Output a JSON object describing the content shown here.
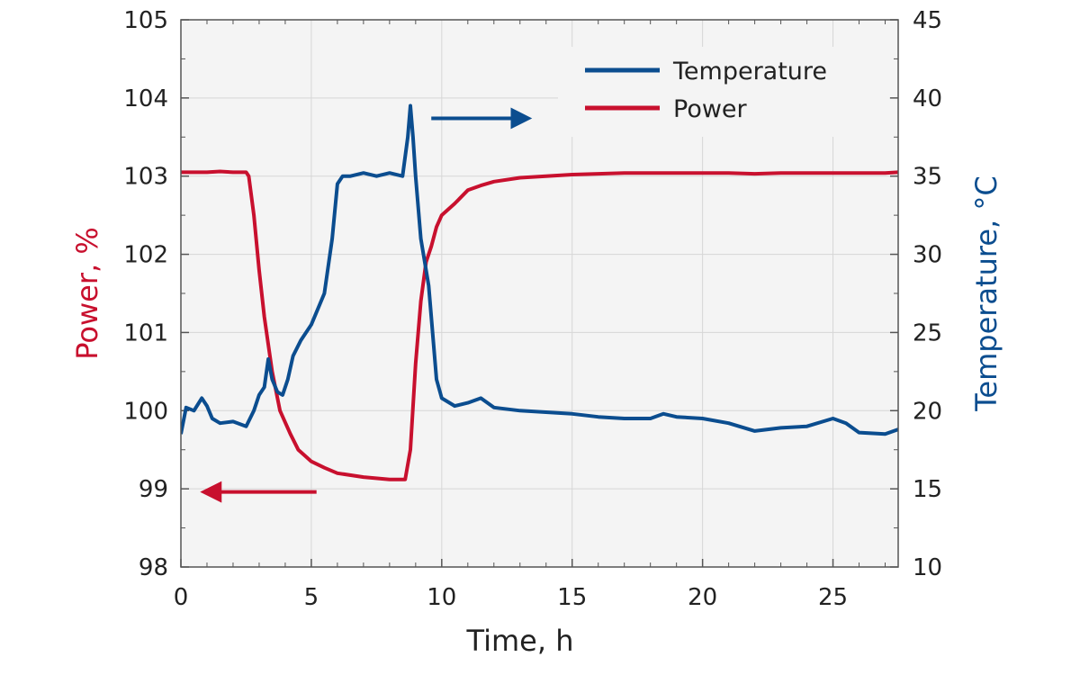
{
  "chart_data": {
    "type": "line",
    "xlabel": "Time, h",
    "ylabel_left": "Power, %",
    "ylabel_right": "Temperature, °C",
    "xlim": [
      0,
      27.5
    ],
    "ylim_left": [
      98,
      105
    ],
    "ylim_right": [
      10,
      45
    ],
    "xticks": [
      "0",
      "5",
      "10",
      "15",
      "20",
      "25"
    ],
    "yticks_left": [
      "98",
      "99",
      "100",
      "101",
      "102",
      "103",
      "104",
      "105"
    ],
    "yticks_right": [
      "10",
      "15",
      "20",
      "25",
      "30",
      "35",
      "40",
      "45"
    ],
    "grid": true,
    "legend_position": "top-right",
    "colors": {
      "power": "#c8102e",
      "temperature": "#0b4d8f",
      "plot_bg": "#f4f4f4",
      "grid": "#d6d6d6"
    },
    "series": [
      {
        "name": "Temperature",
        "axis": "right",
        "x": [
          0,
          0.2,
          0.5,
          0.8,
          1.0,
          1.2,
          1.5,
          2.0,
          2.5,
          2.8,
          3.0,
          3.2,
          3.35,
          3.5,
          3.7,
          3.9,
          4.1,
          4.3,
          4.6,
          5.0,
          5.5,
          5.8,
          6.0,
          6.2,
          6.5,
          7.0,
          7.5,
          8.0,
          8.5,
          8.7,
          8.8,
          8.9,
          9.0,
          9.2,
          9.5,
          9.8,
          10.0,
          10.5,
          11.0,
          11.5,
          12,
          13,
          14,
          15,
          16,
          17,
          18,
          18.5,
          19,
          20,
          21,
          22,
          23,
          24,
          25,
          25.5,
          26,
          27,
          27.5
        ],
        "y": [
          18.5,
          20.2,
          20.0,
          20.8,
          20.3,
          19.5,
          19.2,
          19.3,
          19.0,
          20.0,
          21.0,
          21.5,
          23.3,
          22.0,
          21.2,
          21.0,
          22.0,
          23.5,
          24.5,
          25.5,
          27.5,
          31.0,
          34.5,
          35.0,
          35.0,
          35.2,
          35.0,
          35.2,
          35.0,
          37.5,
          39.5,
          37.5,
          35.0,
          31.0,
          28.0,
          22.0,
          20.8,
          20.3,
          20.5,
          20.8,
          20.2,
          20.0,
          19.9,
          19.8,
          19.6,
          19.5,
          19.5,
          19.8,
          19.6,
          19.5,
          19.2,
          18.7,
          18.9,
          19.0,
          19.5,
          19.2,
          18.6,
          18.5,
          18.8
        ]
      },
      {
        "name": "Power",
        "axis": "left",
        "x": [
          0,
          0.5,
          1.0,
          1.5,
          2.0,
          2.5,
          2.6,
          2.8,
          3.0,
          3.2,
          3.5,
          3.8,
          4.2,
          4.5,
          5.0,
          5.5,
          6.0,
          7.0,
          8.0,
          8.6,
          8.8,
          9.0,
          9.2,
          9.4,
          9.6,
          9.8,
          10.0,
          10.5,
          11.0,
          11.5,
          12.0,
          13.0,
          14.0,
          15.0,
          16.0,
          17.0,
          18.0,
          19.0,
          20.0,
          21.0,
          22.0,
          23.0,
          24.0,
          25.0,
          26.0,
          27.0,
          27.5
        ],
        "y": [
          103.05,
          103.05,
          103.05,
          103.06,
          103.05,
          103.05,
          103.0,
          102.5,
          101.8,
          101.2,
          100.5,
          100.0,
          99.7,
          99.5,
          99.35,
          99.27,
          99.2,
          99.15,
          99.12,
          99.12,
          99.5,
          100.6,
          101.4,
          101.9,
          102.1,
          102.35,
          102.5,
          102.65,
          102.82,
          102.88,
          102.93,
          102.98,
          103.0,
          103.02,
          103.03,
          103.04,
          103.04,
          103.04,
          103.04,
          103.04,
          103.03,
          103.04,
          103.04,
          103.04,
          103.04,
          103.04,
          103.05
        ]
      }
    ],
    "annotations": [
      {
        "type": "arrow",
        "direction": "left",
        "color": "#c8102e",
        "from": [
          5.2,
          98.96
        ],
        "to": [
          0.9,
          98.96
        ]
      },
      {
        "type": "arrow",
        "direction": "right",
        "color": "#0b4d8f",
        "from": [
          9.6,
          103.74
        ],
        "to": [
          13.3,
          103.74
        ]
      }
    ]
  }
}
